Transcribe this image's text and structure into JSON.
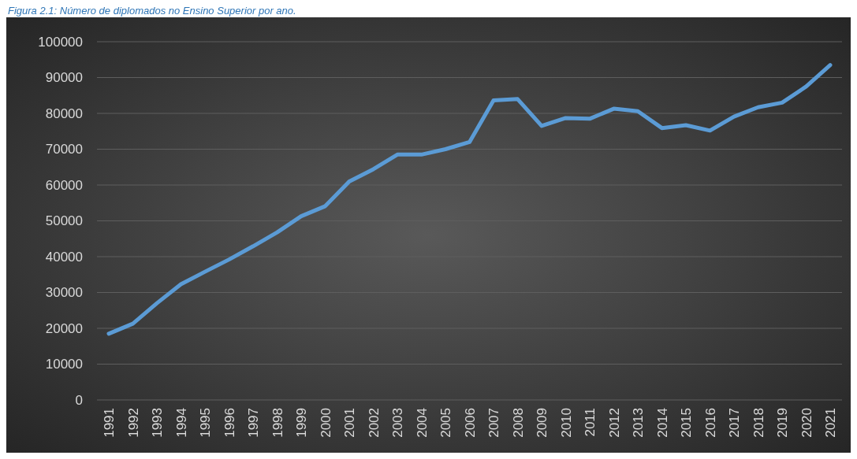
{
  "chart_data": {
    "type": "line",
    "title": "Figura 2.1: Número de diplomados no Ensino Superior por ano.",
    "categories": [
      "1991",
      "1992",
      "1993",
      "1994",
      "1995",
      "1996",
      "1997",
      "1998",
      "1999",
      "2000",
      "2001",
      "2002",
      "2003",
      "2004",
      "2005",
      "2006",
      "2007",
      "2008",
      "2009",
      "2010",
      "2011",
      "2012",
      "2013",
      "2014",
      "2015",
      "2016",
      "2017",
      "2018",
      "2019",
      "2020",
      "2021"
    ],
    "series": [
      {
        "color": "#5b9bd5",
        "values": [
          18500,
          21300,
          27000,
          32300,
          35800,
          39200,
          42900,
          46800,
          51300,
          54100,
          61000,
          64400,
          68500,
          68500,
          70000,
          72000,
          83600,
          84000,
          76500,
          78700,
          78500,
          81300,
          80600,
          75900,
          76700,
          75200,
          79100,
          81700,
          83000,
          87500,
          93500
        ]
      }
    ],
    "ylim": [
      0,
      100000
    ],
    "yticks": [
      0,
      10000,
      20000,
      30000,
      40000,
      50000,
      60000,
      70000,
      80000,
      90000,
      100000
    ],
    "grid": "y",
    "marker": "none",
    "line_style": "solid"
  }
}
